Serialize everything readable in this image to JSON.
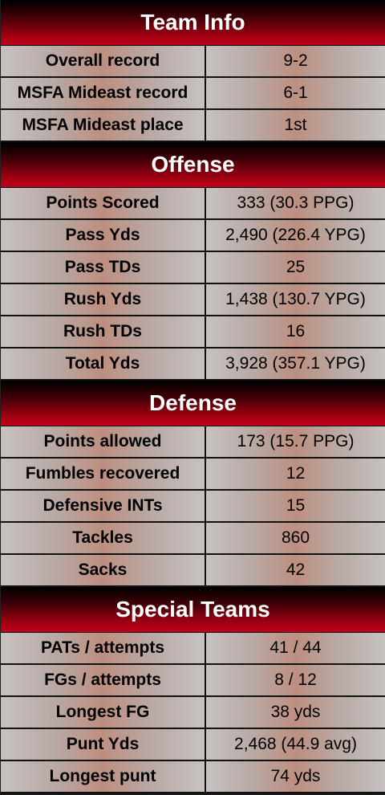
{
  "sections": [
    {
      "title": "Team Info",
      "rows": [
        {
          "label": "Overall record",
          "value": "9-2"
        },
        {
          "label": "MSFA Mideast record",
          "value": "6-1"
        },
        {
          "label": "MSFA Mideast place",
          "value": "1st"
        }
      ]
    },
    {
      "title": "Offense",
      "rows": [
        {
          "label": "Points Scored",
          "value": "333 (30.3 PPG)"
        },
        {
          "label": "Pass Yds",
          "value": "2,490 (226.4 YPG)"
        },
        {
          "label": "Pass TDs",
          "value": "25"
        },
        {
          "label": "Rush Yds",
          "value": "1,438 (130.7 YPG)"
        },
        {
          "label": "Rush TDs",
          "value": "16"
        },
        {
          "label": "Total Yds",
          "value": "3,928 (357.1 YPG)"
        }
      ]
    },
    {
      "title": "Defense",
      "rows": [
        {
          "label": "Points allowed",
          "value": "173 (15.7 PPG)"
        },
        {
          "label": "Fumbles recovered",
          "value": "12"
        },
        {
          "label": "Defensive INTs",
          "value": "15"
        },
        {
          "label": "Tackles",
          "value": "860"
        },
        {
          "label": "Sacks",
          "value": "42"
        }
      ]
    },
    {
      "title": "Special Teams",
      "rows": [
        {
          "label": "PATs / attempts",
          "value": "41 / 44"
        },
        {
          "label": "FGs / attempts",
          "value": "8 / 12"
        },
        {
          "label": "Longest FG",
          "value": "38 yds"
        },
        {
          "label": "Punt Yds",
          "value": "2,468 (44.9 avg)"
        },
        {
          "label": "Longest punt",
          "value": "74 yds"
        }
      ]
    }
  ]
}
